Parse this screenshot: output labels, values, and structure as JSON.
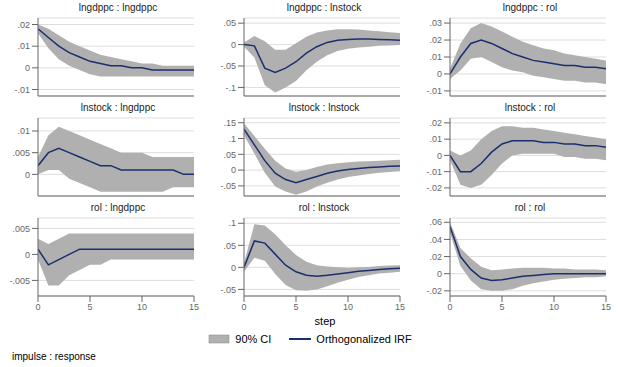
{
  "chart_data": [
    {
      "type": "line",
      "title": "lngdppc : lngdppc",
      "x": [
        0,
        1,
        2,
        3,
        4,
        5,
        6,
        7,
        8,
        9,
        10,
        11,
        12,
        13,
        14,
        15
      ],
      "xlim": [
        0,
        15
      ],
      "xticks": [
        0,
        5,
        10,
        15
      ],
      "ylim": [
        -0.013,
        0.023
      ],
      "yticks": [
        {
          "value": -0.01,
          "label": "-.01"
        },
        0,
        {
          "value": 0.01,
          "label": ".01"
        },
        {
          "value": 0.02,
          "label": ".02"
        }
      ],
      "grid": true,
      "tick_labels": "y",
      "series": [
        {
          "name": "90% CI",
          "type": "area",
          "color": "#b0b0b0",
          "lower": [
            0.016,
            0.009,
            0.004,
            0.001,
            -0.001,
            -0.003,
            -0.004,
            -0.004,
            -0.004,
            -0.004,
            -0.004,
            -0.004,
            -0.004,
            -0.004,
            -0.004,
            -0.004
          ],
          "upper": [
            0.02,
            0.018,
            0.015,
            0.012,
            0.01,
            0.008,
            0.006,
            0.005,
            0.004,
            0.003,
            0.002,
            0.002,
            0.001,
            0.001,
            0.001,
            0.001
          ]
        },
        {
          "name": "Orthogonalized IRF",
          "type": "line",
          "color": "#1a2f6e",
          "values": [
            0.018,
            0.014,
            0.01,
            0.007,
            0.005,
            0.003,
            0.002,
            0.001,
            0.001,
            0.0,
            0.0,
            -0.001,
            -0.001,
            -0.001,
            -0.001,
            -0.001
          ]
        }
      ]
    },
    {
      "type": "line",
      "title": "lngdppc : lnstock",
      "x": [
        0,
        1,
        2,
        3,
        4,
        5,
        6,
        7,
        8,
        9,
        10,
        11,
        12,
        13,
        14,
        15
      ],
      "xlim": [
        0,
        15
      ],
      "xticks": [
        0,
        5,
        10,
        15
      ],
      "ylim": [
        -0.12,
        0.062
      ],
      "yticks": [
        {
          "value": -0.1,
          "label": "-.1"
        },
        {
          "value": -0.05,
          "label": "-.05"
        },
        0,
        {
          "value": 0.05,
          "label": ".05"
        }
      ],
      "grid": true,
      "tick_labels": "y",
      "series": [
        {
          "name": "90% CI",
          "type": "area",
          "color": "#b0b0b0",
          "lower": [
            -0.005,
            -0.03,
            -0.095,
            -0.112,
            -0.1,
            -0.085,
            -0.06,
            -0.04,
            -0.025,
            -0.015,
            -0.01,
            -0.007,
            -0.005,
            -0.003,
            -0.002,
            -0.001
          ],
          "upper": [
            0.005,
            0.02,
            0.008,
            -0.012,
            -0.012,
            0.003,
            0.018,
            0.028,
            0.033,
            0.036,
            0.036,
            0.035,
            0.033,
            0.031,
            0.029,
            0.027
          ]
        },
        {
          "name": "Orthogonalized IRF",
          "type": "line",
          "color": "#1a2f6e",
          "values": [
            0.0,
            -0.003,
            -0.055,
            -0.065,
            -0.055,
            -0.04,
            -0.02,
            -0.005,
            0.005,
            0.01,
            0.012,
            0.013,
            0.013,
            0.012,
            0.011,
            0.01
          ]
        }
      ]
    },
    {
      "type": "line",
      "title": "lngdppc : rol",
      "x": [
        0,
        1,
        2,
        3,
        4,
        5,
        6,
        7,
        8,
        9,
        10,
        11,
        12,
        13,
        14,
        15
      ],
      "xlim": [
        0,
        15
      ],
      "xticks": [
        0,
        5,
        10,
        15
      ],
      "ylim": [
        -0.013,
        0.033
      ],
      "yticks": [
        {
          "value": -0.01,
          "label": "-.01"
        },
        0,
        {
          "value": 0.01,
          "label": ".01"
        },
        {
          "value": 0.02,
          "label": ".02"
        },
        {
          "value": 0.03,
          "label": ".03"
        }
      ],
      "grid": true,
      "tick_labels": "y",
      "series": [
        {
          "name": "90% CI",
          "type": "area",
          "color": "#b0b0b0",
          "lower": [
            -0.003,
            0.002,
            0.009,
            0.01,
            0.007,
            0.004,
            0.002,
            0.001,
            -0.001,
            -0.002,
            -0.003,
            -0.004,
            -0.004,
            -0.005,
            -0.005,
            -0.006
          ],
          "upper": [
            0.003,
            0.018,
            0.027,
            0.03,
            0.028,
            0.025,
            0.022,
            0.019,
            0.017,
            0.015,
            0.014,
            0.012,
            0.011,
            0.01,
            0.009,
            0.008
          ]
        },
        {
          "name": "Orthogonalized IRF",
          "type": "line",
          "color": "#1a2f6e",
          "values": [
            0.0,
            0.01,
            0.018,
            0.02,
            0.018,
            0.015,
            0.012,
            0.01,
            0.008,
            0.007,
            0.006,
            0.005,
            0.005,
            0.004,
            0.004,
            0.003
          ]
        }
      ]
    },
    {
      "type": "line",
      "title": "lnstock : lngdppc",
      "x": [
        0,
        1,
        2,
        3,
        4,
        5,
        6,
        7,
        8,
        9,
        10,
        11,
        12,
        13,
        14,
        15
      ],
      "xlim": [
        0,
        15
      ],
      "xticks": [
        0,
        5,
        10,
        15
      ],
      "ylim": [
        -0.005,
        0.013
      ],
      "yticks": [
        0,
        {
          "value": 0.005,
          "label": ".005"
        },
        {
          "value": 0.01,
          "label": ".01"
        }
      ],
      "grid": true,
      "tick_labels": "y",
      "series": [
        {
          "name": "90% CI",
          "type": "area",
          "color": "#b0b0b0",
          "lower": [
            0.0,
            0.001,
            0.001,
            -0.001,
            -0.002,
            -0.003,
            -0.004,
            -0.004,
            -0.004,
            -0.004,
            -0.004,
            -0.004,
            -0.004,
            -0.003,
            -0.003,
            -0.003
          ],
          "upper": [
            0.004,
            0.009,
            0.011,
            0.01,
            0.009,
            0.008,
            0.007,
            0.006,
            0.005,
            0.005,
            0.005,
            0.004,
            0.004,
            0.004,
            0.004,
            0.004
          ]
        },
        {
          "name": "Orthogonalized IRF",
          "type": "line",
          "color": "#1a2f6e",
          "values": [
            0.002,
            0.005,
            0.006,
            0.005,
            0.004,
            0.003,
            0.002,
            0.002,
            0.001,
            0.001,
            0.001,
            0.001,
            0.001,
            0.001,
            0.0,
            0.0
          ]
        }
      ]
    },
    {
      "type": "line",
      "title": "lnstock : lnstock",
      "x": [
        0,
        1,
        2,
        3,
        4,
        5,
        6,
        7,
        8,
        9,
        10,
        11,
        12,
        13,
        14,
        15
      ],
      "xlim": [
        0,
        15
      ],
      "xticks": [
        0,
        5,
        10,
        15
      ],
      "ylim": [
        -0.082,
        0.165
      ],
      "yticks": [
        {
          "value": -0.05,
          "label": "-.05"
        },
        0,
        {
          "value": 0.05,
          "label": ".05"
        },
        {
          "value": 0.1,
          "label": ".1"
        },
        {
          "value": 0.15,
          "label": ".15"
        }
      ],
      "grid": true,
      "tick_labels": "y",
      "series": [
        {
          "name": "90% CI",
          "type": "area",
          "color": "#b0b0b0",
          "lower": [
            0.11,
            0.052,
            -0.008,
            -0.052,
            -0.068,
            -0.078,
            -0.068,
            -0.052,
            -0.04,
            -0.03,
            -0.022,
            -0.017,
            -0.012,
            -0.008,
            -0.006,
            -0.004
          ],
          "upper": [
            0.148,
            0.108,
            0.068,
            0.03,
            0.005,
            -0.005,
            0.0,
            0.01,
            0.018,
            0.022,
            0.025,
            0.027,
            0.028,
            0.03,
            0.031,
            0.033
          ]
        },
        {
          "name": "Orthogonalized IRF",
          "type": "line",
          "color": "#1a2f6e",
          "values": [
            0.13,
            0.08,
            0.03,
            -0.01,
            -0.03,
            -0.04,
            -0.03,
            -0.02,
            -0.01,
            -0.003,
            0.002,
            0.005,
            0.008,
            0.01,
            0.012,
            0.013
          ]
        }
      ]
    },
    {
      "type": "line",
      "title": "lnstock : rol",
      "x": [
        0,
        1,
        2,
        3,
        4,
        5,
        6,
        7,
        8,
        9,
        10,
        11,
        12,
        13,
        14,
        15
      ],
      "xlim": [
        0,
        15
      ],
      "xticks": [
        0,
        5,
        10,
        15
      ],
      "ylim": [
        -0.025,
        0.023
      ],
      "yticks": [
        {
          "value": -0.02,
          "label": "-.02"
        },
        {
          "value": -0.01,
          "label": "-.01"
        },
        0,
        {
          "value": 0.01,
          "label": ".01"
        },
        {
          "value": 0.02,
          "label": ".02"
        }
      ],
      "grid": true,
      "tick_labels": "y",
      "series": [
        {
          "name": "90% CI",
          "type": "area",
          "color": "#b0b0b0",
          "lower": [
            -0.003,
            -0.018,
            -0.02,
            -0.018,
            -0.012,
            -0.005,
            0.0,
            0.001,
            0.001,
            0.001,
            0.001,
            -0.001,
            -0.001,
            -0.002,
            -0.002,
            -0.003
          ],
          "upper": [
            0.003,
            0.0,
            0.003,
            0.01,
            0.015,
            0.018,
            0.018,
            0.017,
            0.017,
            0.016,
            0.015,
            0.014,
            0.013,
            0.012,
            0.011,
            0.01
          ]
        },
        {
          "name": "Orthogonalized IRF",
          "type": "line",
          "color": "#1a2f6e",
          "values": [
            0.0,
            -0.01,
            -0.01,
            -0.005,
            0.002,
            0.007,
            0.009,
            0.009,
            0.009,
            0.008,
            0.008,
            0.007,
            0.007,
            0.006,
            0.006,
            0.005
          ]
        }
      ]
    },
    {
      "type": "line",
      "title": "rol : lngdppc",
      "x": [
        0,
        1,
        2,
        3,
        4,
        5,
        6,
        7,
        8,
        9,
        10,
        11,
        12,
        13,
        14,
        15
      ],
      "xlim": [
        0,
        15
      ],
      "xticks": [
        0,
        5,
        10,
        15
      ],
      "ylim": [
        -0.008,
        0.007
      ],
      "yticks": [
        {
          "value": -0.005,
          "label": "-.005"
        },
        0,
        {
          "value": 0.005,
          "label": ".005"
        }
      ],
      "grid": true,
      "series": [
        {
          "name": "90% CI",
          "type": "area",
          "color": "#b0b0b0",
          "lower": [
            -0.001,
            -0.006,
            -0.006,
            -0.004,
            -0.003,
            -0.002,
            -0.002,
            -0.001,
            -0.001,
            -0.001,
            -0.001,
            -0.001,
            -0.001,
            -0.001,
            -0.001,
            -0.001
          ],
          "upper": [
            0.003,
            0.002,
            0.003,
            0.004,
            0.004,
            0.004,
            0.004,
            0.004,
            0.004,
            0.004,
            0.004,
            0.004,
            0.004,
            0.004,
            0.004,
            0.004
          ]
        },
        {
          "name": "Orthogonalized IRF",
          "type": "line",
          "color": "#1a2f6e",
          "values": [
            0.001,
            -0.002,
            -0.001,
            0.0,
            0.001,
            0.001,
            0.001,
            0.001,
            0.001,
            0.001,
            0.001,
            0.001,
            0.001,
            0.001,
            0.001,
            0.001
          ]
        }
      ]
    },
    {
      "type": "line",
      "title": "rol : lnstock",
      "x": [
        0,
        1,
        2,
        3,
        4,
        5,
        6,
        7,
        8,
        9,
        10,
        11,
        12,
        13,
        14,
        15
      ],
      "xlim": [
        0,
        15
      ],
      "xticks": [
        0,
        5,
        10,
        15
      ],
      "ylim": [
        -0.065,
        0.112
      ],
      "yticks": [
        {
          "value": -0.05,
          "label": "-.05"
        },
        0,
        {
          "value": 0.05,
          "label": ".05"
        },
        {
          "value": 0.1,
          "label": ".1"
        }
      ],
      "grid": true,
      "series": [
        {
          "name": "90% CI",
          "type": "area",
          "color": "#b0b0b0",
          "lower": [
            -0.01,
            0.022,
            0.015,
            -0.015,
            -0.04,
            -0.052,
            -0.053,
            -0.05,
            -0.043,
            -0.035,
            -0.028,
            -0.022,
            -0.018,
            -0.014,
            -0.012,
            -0.01
          ],
          "upper": [
            0.01,
            0.098,
            0.095,
            0.075,
            0.05,
            0.028,
            0.013,
            0.005,
            0.002,
            0.0,
            -0.001,
            0.0,
            0.001,
            0.003,
            0.004,
            0.005
          ]
        },
        {
          "name": "Orthogonalized IRF",
          "type": "line",
          "color": "#1a2f6e",
          "values": [
            0.0,
            0.06,
            0.055,
            0.03,
            0.005,
            -0.01,
            -0.018,
            -0.02,
            -0.018,
            -0.015,
            -0.012,
            -0.009,
            -0.007,
            -0.005,
            -0.003,
            -0.002
          ]
        }
      ]
    },
    {
      "type": "line",
      "title": "rol : rol",
      "x": [
        0,
        1,
        2,
        3,
        4,
        5,
        6,
        7,
        8,
        9,
        10,
        11,
        12,
        13,
        14,
        15
      ],
      "xlim": [
        0,
        15
      ],
      "xticks": [
        0,
        5,
        10,
        15
      ],
      "ylim": [
        -0.026,
        0.065
      ],
      "yticks": [
        {
          "value": -0.02,
          "label": "-.02"
        },
        0,
        {
          "value": 0.02,
          "label": ".02"
        },
        {
          "value": 0.04,
          "label": ".04"
        },
        {
          "value": 0.06,
          "label": ".06"
        }
      ],
      "grid": true,
      "series": [
        {
          "name": "90% CI",
          "type": "area",
          "color": "#b0b0b0",
          "lower": [
            0.048,
            0.009,
            -0.008,
            -0.018,
            -0.02,
            -0.02,
            -0.018,
            -0.014,
            -0.011,
            -0.009,
            -0.007,
            -0.006,
            -0.005,
            -0.004,
            -0.004,
            -0.003
          ],
          "upper": [
            0.06,
            0.03,
            0.018,
            0.008,
            0.004,
            0.005,
            0.006,
            0.007,
            0.007,
            0.007,
            0.006,
            0.006,
            0.005,
            0.005,
            0.005,
            0.004
          ]
        },
        {
          "name": "Orthogonalized IRF",
          "type": "line",
          "color": "#1a2f6e",
          "values": [
            0.055,
            0.02,
            0.005,
            -0.005,
            -0.008,
            -0.007,
            -0.005,
            -0.003,
            -0.002,
            -0.001,
            0.0,
            0.0,
            0.0,
            0.0,
            0.0,
            0.0
          ]
        }
      ]
    }
  ],
  "xlabel": "step",
  "annotations": [
    "impulse : response"
  ],
  "legend": "bottom"
}
